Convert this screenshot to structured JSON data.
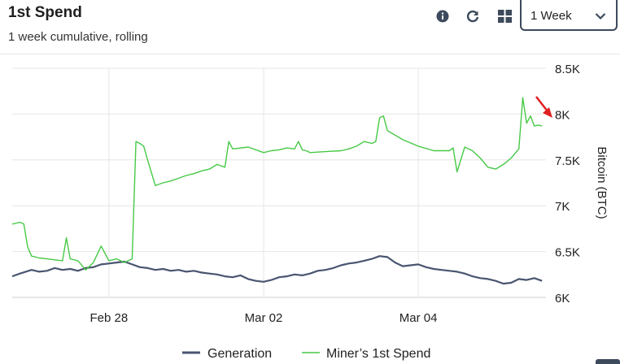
{
  "header": {
    "title": "1st Spend",
    "subtitle": "1 week cumulative, rolling",
    "range_selected": "1 Week"
  },
  "icons": [
    "info-icon",
    "refresh-icon",
    "grid-icon",
    "chevron-down-icon"
  ],
  "colors": {
    "generation": "#4a5570",
    "spend": "#46c946",
    "annotation_arrow": "#e02020",
    "grid": "#e6e6e6"
  },
  "chart_data": {
    "type": "line",
    "title": "1st Spend",
    "subtitle": "1 week cumulative, rolling",
    "xlabel": "",
    "ylabel": "Bitcoin (BTC)",
    "ylim": [
      6000,
      8500
    ],
    "x_tick_labels": [
      "Feb 28",
      "Mar 02",
      "Mar 04"
    ],
    "y_tick_labels": [
      "6K",
      "6.5K",
      "7K",
      "7.5K",
      "8K",
      "8.5K"
    ],
    "y_ticks": [
      6000,
      6500,
      7000,
      7500,
      8000,
      8500
    ],
    "x_unit": "days",
    "x_range": [
      -1.25,
      5.65
    ],
    "x_ticks": [
      0,
      2,
      4
    ],
    "grid": true,
    "legend_position": "bottom",
    "annotations": [
      "red arrow pointing to latest Miner's 1st Spend value"
    ],
    "series": [
      {
        "name": "Generation",
        "x": [
          -1.25,
          -1.15,
          -1.0,
          -0.9,
          -0.8,
          -0.7,
          -0.6,
          -0.5,
          -0.4,
          -0.3,
          -0.2,
          -0.1,
          0.0,
          0.1,
          0.2,
          0.3,
          0.4,
          0.5,
          0.6,
          0.7,
          0.8,
          0.9,
          1.0,
          1.1,
          1.2,
          1.3,
          1.4,
          1.5,
          1.6,
          1.7,
          1.8,
          1.9,
          2.0,
          2.1,
          2.2,
          2.3,
          2.4,
          2.5,
          2.6,
          2.7,
          2.8,
          2.9,
          3.0,
          3.1,
          3.2,
          3.3,
          3.4,
          3.5,
          3.6,
          3.7,
          3.8,
          3.9,
          4.0,
          4.1,
          4.2,
          4.3,
          4.4,
          4.5,
          4.6,
          4.7,
          4.8,
          4.9,
          5.0,
          5.1,
          5.2,
          5.3,
          5.4,
          5.5,
          5.6
        ],
        "values": [
          6230,
          6260,
          6300,
          6280,
          6290,
          6320,
          6300,
          6310,
          6290,
          6320,
          6330,
          6360,
          6370,
          6380,
          6390,
          6360,
          6330,
          6320,
          6300,
          6310,
          6290,
          6300,
          6280,
          6290,
          6270,
          6260,
          6250,
          6230,
          6220,
          6240,
          6200,
          6180,
          6170,
          6190,
          6220,
          6230,
          6250,
          6240,
          6260,
          6290,
          6300,
          6320,
          6350,
          6370,
          6380,
          6400,
          6420,
          6450,
          6440,
          6380,
          6340,
          6350,
          6360,
          6330,
          6310,
          6300,
          6290,
          6280,
          6260,
          6230,
          6210,
          6200,
          6180,
          6150,
          6160,
          6200,
          6190,
          6210,
          6180
        ]
      },
      {
        "name": "Miner's 1st Spend",
        "x": [
          -1.25,
          -1.15,
          -1.1,
          -1.05,
          -1.0,
          -0.9,
          -0.8,
          -0.7,
          -0.6,
          -0.55,
          -0.5,
          -0.4,
          -0.3,
          -0.2,
          -0.1,
          0.0,
          0.1,
          0.2,
          0.3,
          0.35,
          0.4,
          0.45,
          0.5,
          0.6,
          0.7,
          0.8,
          0.9,
          1.0,
          1.1,
          1.2,
          1.3,
          1.4,
          1.5,
          1.55,
          1.6,
          1.8,
          2.0,
          2.1,
          2.2,
          2.3,
          2.4,
          2.45,
          2.5,
          2.55,
          2.6,
          2.8,
          3.0,
          3.1,
          3.2,
          3.3,
          3.4,
          3.45,
          3.5,
          3.55,
          3.6,
          3.8,
          4.0,
          4.2,
          4.4,
          4.45,
          4.5,
          4.6,
          4.7,
          4.8,
          4.9,
          5.0,
          5.1,
          5.2,
          5.3,
          5.35,
          5.4,
          5.45,
          5.5,
          5.55,
          5.6
        ],
        "values": [
          6800,
          6820,
          6800,
          6550,
          6450,
          6430,
          6420,
          6410,
          6400,
          6650,
          6420,
          6400,
          6300,
          6380,
          6560,
          6400,
          6420,
          6380,
          6420,
          7700,
          7680,
          7650,
          7500,
          7220,
          7250,
          7270,
          7300,
          7330,
          7350,
          7380,
          7400,
          7450,
          7420,
          7700,
          7620,
          7640,
          7580,
          7600,
          7610,
          7630,
          7620,
          7700,
          7610,
          7600,
          7580,
          7590,
          7600,
          7620,
          7650,
          7700,
          7680,
          7700,
          7960,
          7980,
          7820,
          7720,
          7650,
          7600,
          7600,
          7630,
          7370,
          7640,
          7600,
          7520,
          7420,
          7400,
          7450,
          7520,
          7620,
          8180,
          7900,
          7980,
          7870,
          7880,
          7870
        ]
      }
    ]
  },
  "legend": {
    "generation": "Generation",
    "spend": "Miner’s 1st Spend"
  }
}
